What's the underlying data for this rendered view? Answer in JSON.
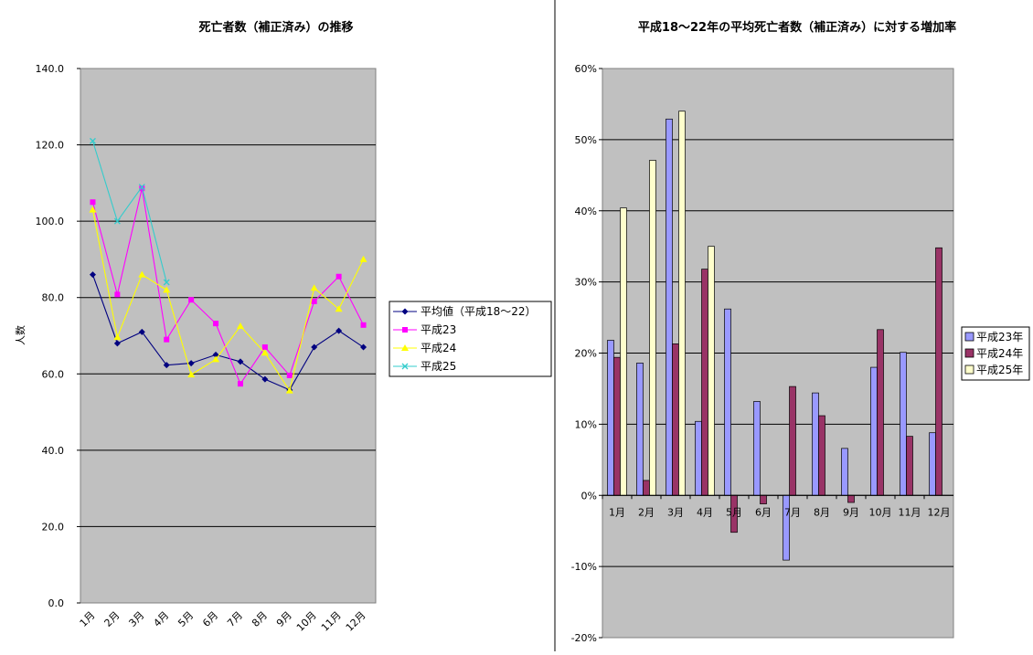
{
  "chart_data": [
    {
      "type": "line",
      "title": "死亡者数（補正済み）の推移",
      "ylabel": "人数",
      "ylim": [
        0,
        140
      ],
      "yticks": [
        "0.0",
        "20.0",
        "40.0",
        "60.0",
        "80.0",
        "100.0",
        "120.0",
        "140.0"
      ],
      "categories": [
        "1月",
        "2月",
        "3月",
        "4月",
        "5月",
        "6月",
        "7月",
        "8月",
        "9月",
        "10月",
        "11月",
        "12月"
      ],
      "grid": true,
      "legend_position": "right",
      "series": [
        {
          "name": "平均値（平成18～22）",
          "color": "#000080",
          "marker": "diamond",
          "values": [
            86.0,
            68.0,
            71.0,
            62.3,
            62.8,
            65.0,
            63.2,
            58.6,
            55.8,
            67.0,
            71.3,
            67.0
          ]
        },
        {
          "name": "平成23",
          "color": "#ff00ff",
          "marker": "square",
          "values": [
            105.0,
            80.8,
            108.6,
            69.0,
            79.4,
            73.2,
            57.4,
            67.0,
            59.6,
            79.0,
            85.5,
            72.8
          ]
        },
        {
          "name": "平成24",
          "color": "#ffff00",
          "marker": "triangle",
          "values": [
            103.0,
            69.6,
            86.0,
            82.0,
            59.8,
            63.8,
            72.5,
            65.5,
            55.6,
            82.5,
            77.0,
            90.0
          ]
        },
        {
          "name": "平成25",
          "color": "#33cccc",
          "marker": "x",
          "values": [
            121.0,
            100.0,
            109.0,
            84.0,
            null,
            null,
            null,
            null,
            null,
            null,
            null,
            null
          ]
        }
      ]
    },
    {
      "type": "bar",
      "title": "平成18～22年の平均死亡者数（補正済み）に対する増加率",
      "ylim": [
        -20,
        60
      ],
      "yticks": [
        "-20%",
        "-10%",
        "0%",
        "10%",
        "20%",
        "30%",
        "40%",
        "50%",
        "60%"
      ],
      "categories": [
        "1月",
        "2月",
        "3月",
        "4月",
        "5月",
        "6月",
        "7月",
        "8月",
        "9月",
        "10月",
        "11月",
        "12月"
      ],
      "grid": true,
      "legend_position": "right",
      "series": [
        {
          "name": "平成23年",
          "color": "#9999ff",
          "values": [
            21.8,
            18.6,
            52.9,
            10.4,
            26.2,
            13.2,
            -9.1,
            14.4,
            6.6,
            18.0,
            20.1,
            8.8
          ]
        },
        {
          "name": "平成24年",
          "color": "#993366",
          "values": [
            19.4,
            2.1,
            21.3,
            31.8,
            -5.2,
            -1.2,
            15.3,
            11.2,
            -1.0,
            23.3,
            8.3,
            34.8
          ]
        },
        {
          "name": "平成25年",
          "color": "#ffffcc",
          "values": [
            40.4,
            47.1,
            54.0,
            35.0,
            null,
            null,
            null,
            null,
            null,
            null,
            null,
            null
          ]
        }
      ]
    }
  ]
}
